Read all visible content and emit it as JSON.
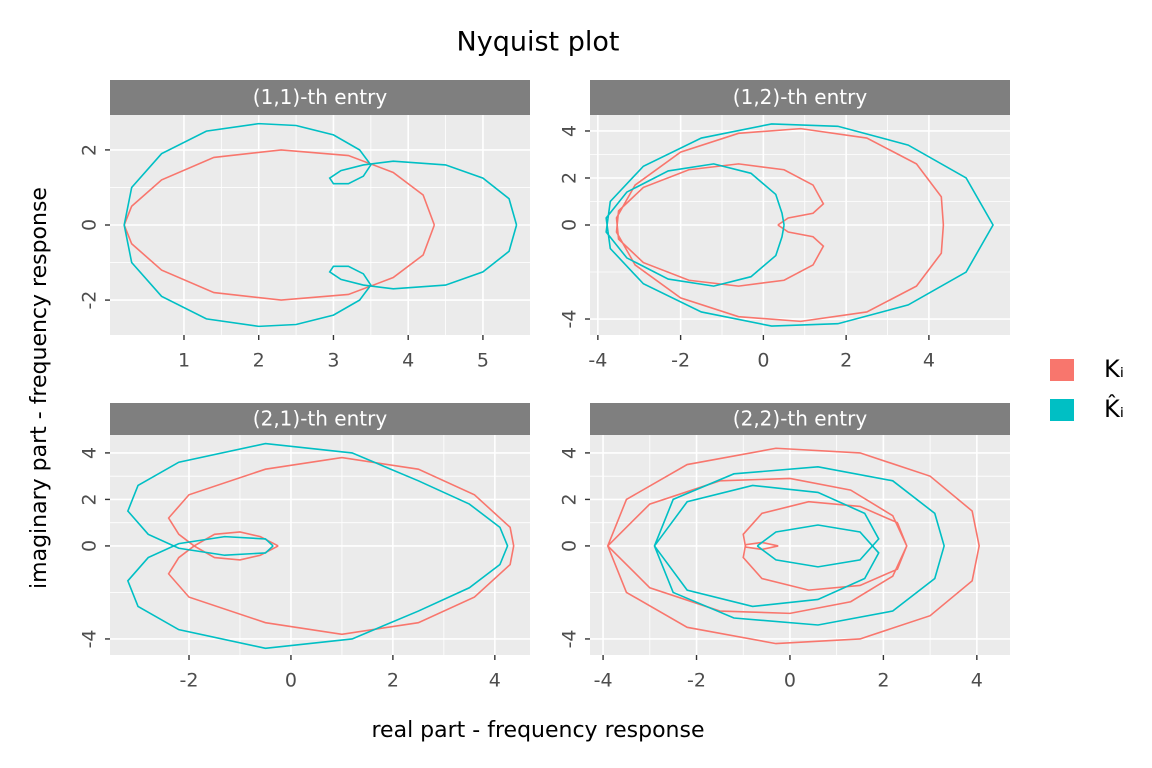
{
  "title": "Nyquist plot",
  "x_label": "real part - frequency response",
  "y_label": "imaginary part - frequency response",
  "legend": {
    "position": "right",
    "entries": [
      {
        "name": "Kᵢ",
        "color": "#F8766D"
      },
      {
        "name": "K̂ᵢ",
        "color": "#00BFC4"
      }
    ]
  },
  "chart_data": [
    {
      "type": "line",
      "title": "(1,1)-th entry",
      "grid": true,
      "xlim": [
        0.01,
        5.63
      ],
      "ylim": [
        -2.93,
        2.93
      ],
      "xticks": [
        1,
        2,
        3,
        4,
        5
      ],
      "yticks": [
        -2,
        0,
        2
      ],
      "series": [
        {
          "color": "#F8766D",
          "x": [
            4.35,
            4.2,
            3.8,
            3.2,
            2.3,
            1.4,
            0.7,
            0.3,
            0.2,
            0.3,
            0.7,
            1.4,
            2.3,
            3.2,
            3.8,
            4.2,
            4.35
          ],
          "values": [
            0,
            0.8,
            1.4,
            1.85,
            2.0,
            1.8,
            1.2,
            0.5,
            0,
            -0.5,
            -1.2,
            -1.8,
            -2.0,
            -1.85,
            -1.4,
            -0.8,
            0
          ]
        },
        {
          "color": "#00BFC4",
          "x": [
            5.45,
            5.35,
            5.0,
            4.5,
            3.8,
            3.4,
            3.1,
            2.95,
            3.0,
            3.2,
            3.4,
            3.5,
            3.35,
            3.0,
            2.5,
            2.0,
            1.3,
            0.7,
            0.3,
            0.2,
            0.3,
            0.7,
            1.3,
            2.0,
            2.5,
            3.0,
            3.35,
            3.5,
            3.4,
            3.2,
            3.0,
            2.95,
            3.1,
            3.4,
            3.8,
            4.5,
            5.0,
            5.35,
            5.45
          ],
          "values": [
            0,
            0.7,
            1.25,
            1.6,
            1.7,
            1.6,
            1.45,
            1.25,
            1.1,
            1.1,
            1.3,
            1.6,
            2.0,
            2.4,
            2.65,
            2.7,
            2.5,
            1.9,
            1.0,
            0,
            -1.0,
            -1.9,
            -2.5,
            -2.7,
            -2.65,
            -2.4,
            -2.0,
            -1.6,
            -1.3,
            -1.1,
            -1.1,
            -1.25,
            -1.45,
            -1.6,
            -1.7,
            -1.6,
            -1.25,
            -0.7,
            0
          ]
        }
      ]
    },
    {
      "type": "line",
      "title": "(1,2)-th entry",
      "grid": true,
      "xlim": [
        -4.19,
        5.96
      ],
      "ylim": [
        -4.68,
        4.68
      ],
      "xticks": [
        -4,
        -2,
        0,
        2,
        4
      ],
      "yticks": [
        -4,
        0,
        2,
        4
      ],
      "series": [
        {
          "color": "#F8766D",
          "x": [
            0.35,
            0.6,
            1.2,
            1.45,
            1.2,
            0.5,
            -0.6,
            -1.8,
            -2.9,
            -3.5,
            -3.55,
            -3.1,
            -2.0,
            -0.6,
            0.9,
            2.5,
            3.7,
            4.3,
            4.35,
            4.3,
            3.7,
            2.5,
            0.9,
            -0.6,
            -2.0,
            -3.1,
            -3.55,
            -3.5,
            -2.9,
            -1.8,
            -0.6,
            0.5,
            1.2,
            1.45,
            1.2,
            0.6,
            0.35
          ],
          "values": [
            0,
            0.3,
            0.5,
            0.9,
            1.7,
            2.35,
            2.6,
            2.35,
            1.6,
            0.6,
            -0.3,
            -1.7,
            -3.1,
            -3.9,
            -4.1,
            -3.7,
            -2.6,
            -1.2,
            0,
            1.2,
            2.6,
            3.7,
            4.1,
            3.9,
            3.1,
            1.7,
            0.3,
            -0.6,
            -1.6,
            -2.35,
            -2.6,
            -2.35,
            -1.7,
            -0.9,
            -0.5,
            -0.3,
            0
          ]
        },
        {
          "color": "#00BFC4",
          "x": [
            0.5,
            0.45,
            0.3,
            -0.3,
            -1.2,
            -2.3,
            -3.3,
            -3.8,
            -3.7,
            -2.9,
            -1.5,
            0.2,
            1.8,
            3.5,
            4.9,
            5.55,
            4.9,
            3.5,
            1.8,
            0.2,
            -1.5,
            -2.9,
            -3.7,
            -3.8,
            -3.3,
            -2.3,
            -1.2,
            -0.3,
            0.3,
            0.45,
            0.5
          ],
          "values": [
            0,
            0.5,
            1.3,
            2.2,
            2.6,
            2.3,
            1.4,
            0.3,
            -1.0,
            -2.5,
            -3.7,
            -4.3,
            -4.2,
            -3.4,
            -2.0,
            0,
            2.0,
            3.4,
            4.2,
            4.3,
            3.7,
            2.5,
            1.0,
            -0.3,
            -1.4,
            -2.3,
            -2.6,
            -2.2,
            -1.3,
            -0.5,
            0
          ]
        }
      ]
    },
    {
      "type": "line",
      "title": "(2,1)-th entry",
      "grid": true,
      "xlim": [
        -3.55,
        4.69
      ],
      "ylim": [
        -4.69,
        4.77
      ],
      "xticks": [
        -2,
        0,
        2,
        4
      ],
      "yticks": [
        -4,
        0,
        2,
        4
      ],
      "series": [
        {
          "color": "#F8766D",
          "x": [
            -0.25,
            -0.6,
            -1.0,
            -1.5,
            -1.9,
            -2.2,
            -2.4,
            -2.0,
            -0.5,
            1.0,
            2.5,
            3.6,
            4.3,
            4.37,
            4.3,
            3.6,
            2.5,
            1.0,
            -0.5,
            -2.0,
            -2.4,
            -2.2,
            -1.9,
            -1.5,
            -1.0,
            -0.6,
            -0.25
          ],
          "values": [
            0,
            0.4,
            0.6,
            0.5,
            0.0,
            -0.5,
            -1.2,
            -2.2,
            -3.3,
            -3.8,
            -3.3,
            -2.2,
            -0.8,
            0,
            0.8,
            2.2,
            3.3,
            3.8,
            3.3,
            2.2,
            1.2,
            0.5,
            0.0,
            -0.5,
            -0.6,
            -0.4,
            0
          ]
        },
        {
          "color": "#00BFC4",
          "x": [
            -0.35,
            -0.5,
            -1.3,
            -2.2,
            -2.8,
            -3.2,
            -3.0,
            -2.2,
            -0.5,
            1.2,
            2.5,
            3.5,
            4.1,
            4.25,
            4.1,
            3.5,
            2.5,
            1.2,
            -0.5,
            -2.2,
            -3.0,
            -3.2,
            -2.8,
            -2.2,
            -1.3,
            -0.5,
            -0.35
          ],
          "values": [
            0,
            0.3,
            0.4,
            0.1,
            -0.5,
            -1.5,
            -2.6,
            -3.6,
            -4.4,
            -4.0,
            -2.8,
            -1.8,
            -0.8,
            0,
            0.8,
            1.8,
            2.8,
            4.0,
            4.4,
            3.6,
            2.6,
            1.5,
            0.5,
            -0.1,
            -0.4,
            -0.3,
            0
          ]
        }
      ]
    },
    {
      "type": "line",
      "title": "(2,2)-th entry",
      "grid": true,
      "xlim": [
        -4.28,
        4.71
      ],
      "ylim": [
        -4.69,
        4.77
      ],
      "xticks": [
        -4,
        -2,
        0,
        2,
        4
      ],
      "yticks": [
        -4,
        0,
        2,
        4
      ],
      "series": [
        {
          "color": "#F8766D",
          "x": [
            -0.25,
            -0.6,
            -0.95,
            -1.0,
            -0.6,
            0.4,
            1.5,
            2.3,
            2.5,
            2.2,
            1.3,
            0,
            -1.5,
            -3.0,
            -3.9,
            -3.5,
            -2.2,
            -0.3,
            1.5,
            3.0,
            3.9,
            4.05,
            3.9,
            3.0,
            1.5,
            -0.3,
            -2.2,
            -3.5,
            -3.9,
            -3.0,
            -1.5,
            0,
            1.3,
            2.2,
            2.5,
            2.3,
            1.5,
            0.4,
            -0.6,
            -1.0,
            -0.95,
            -0.6,
            -0.25
          ],
          "values": [
            0,
            0.15,
            0.05,
            -0.5,
            -1.4,
            -1.9,
            -1.7,
            -1.0,
            0,
            1.3,
            2.4,
            2.9,
            2.8,
            1.8,
            0,
            -2.0,
            -3.5,
            -4.2,
            -4.0,
            -3.0,
            -1.5,
            0,
            1.5,
            3.0,
            4.0,
            4.2,
            3.5,
            2.0,
            0,
            -1.8,
            -2.8,
            -2.9,
            -2.4,
            -1.3,
            0,
            1.0,
            1.7,
            1.9,
            1.4,
            0.5,
            -0.05,
            -0.15,
            0
          ]
        },
        {
          "color": "#00BFC4",
          "x": [
            -0.7,
            -0.3,
            0.6,
            1.5,
            1.9,
            1.6,
            0.6,
            -0.8,
            -2.2,
            -2.9,
            -2.5,
            -1.2,
            0.6,
            2.2,
            3.1,
            3.3,
            3.1,
            2.2,
            0.6,
            -1.2,
            -2.5,
            -2.9,
            -2.2,
            -0.8,
            0.6,
            1.6,
            1.9,
            1.5,
            0.6,
            -0.3,
            -0.7
          ],
          "values": [
            0,
            -0.6,
            -0.9,
            -0.6,
            0.3,
            1.4,
            2.3,
            2.6,
            1.9,
            0,
            -2.0,
            -3.1,
            -3.4,
            -2.8,
            -1.4,
            0,
            1.4,
            2.8,
            3.4,
            3.1,
            2.0,
            0,
            -1.9,
            -2.6,
            -2.3,
            -1.4,
            -0.3,
            0.6,
            0.9,
            0.6,
            0
          ]
        }
      ]
    }
  ]
}
